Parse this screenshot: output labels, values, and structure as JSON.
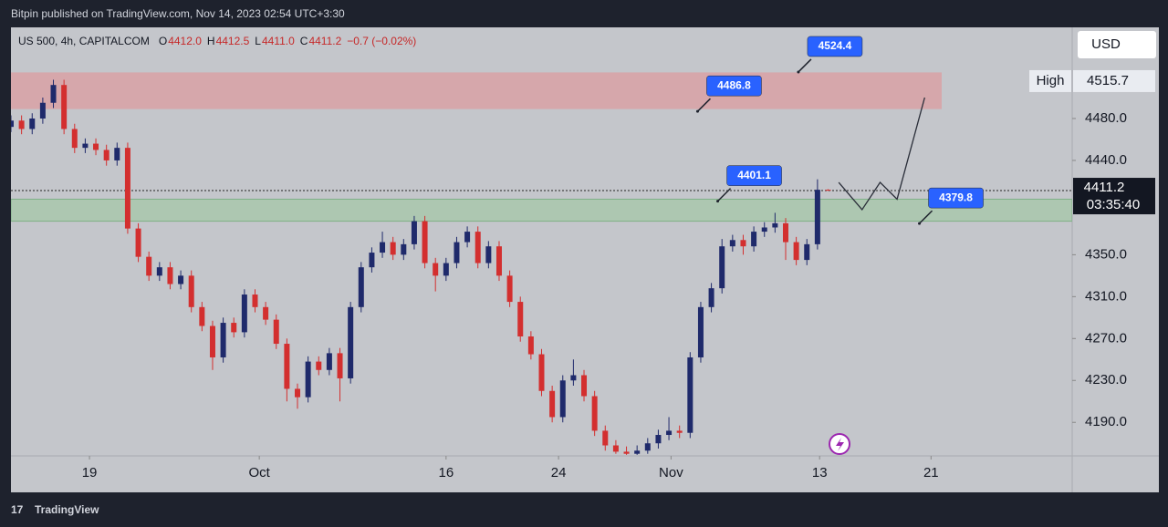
{
  "header": {
    "text": "Bitpin published on TradingView.com, Nov 14, 2023 02:54 UTC+3:30"
  },
  "footer": {
    "brand": "TradingView"
  },
  "chart_data": {
    "type": "candlestick",
    "symbol": "US 500, 4h, CAPITALCOM",
    "legend_values": [
      {
        "key": "O",
        "text": "4412.0"
      },
      {
        "key": "H",
        "text": "4412.5"
      },
      {
        "key": "L",
        "text": "4411.0"
      },
      {
        "key": "C",
        "text": "4411.2"
      }
    ],
    "change": "−0.7 (−0.02%)",
    "currency": "USD",
    "up_color": "#1f2a6b",
    "down_color": "#d32f2f",
    "xlim": [
      0,
      100
    ],
    "xticks": [
      {
        "value": 7.4,
        "label": "19"
      },
      {
        "value": 23.4,
        "label": "Oct"
      },
      {
        "value": 41,
        "label": "16"
      },
      {
        "value": 51.6,
        "label": "24"
      },
      {
        "value": 62.2,
        "label": "Nov"
      },
      {
        "value": 76.2,
        "label": "13"
      },
      {
        "value": 86.7,
        "label": "21"
      }
    ],
    "ylim": [
      4158,
      4567
    ],
    "yticks": [
      {
        "value": 4190,
        "label": "4190.0"
      },
      {
        "value": 4230,
        "label": "4230.0"
      },
      {
        "value": 4270,
        "label": "4270.0"
      },
      {
        "value": 4310,
        "label": "4310.0"
      },
      {
        "value": 4350,
        "label": "4350.0"
      },
      {
        "value": 4440,
        "label": "4440.0"
      },
      {
        "value": 4480,
        "label": "4480.0"
      }
    ],
    "open": [
      4472,
      4478,
      4470,
      4480,
      4495,
      4512,
      4470,
      4452,
      4456,
      4450,
      4440,
      4452,
      4375,
      4348,
      4330,
      4338,
      4322,
      4330,
      4300,
      4282,
      4252,
      4285,
      4276,
      4312,
      4300,
      4288,
      4265,
      4222,
      4214,
      4248,
      4240,
      4256,
      4232,
      4300,
      4338,
      4352,
      4362,
      4350,
      4360,
      4382,
      4342,
      4330,
      4342,
      4362,
      4372,
      4342,
      4358,
      4330,
      4305,
      4272,
      4255,
      4220,
      4195,
      4230,
      4235,
      4215,
      4182,
      4168,
      4162,
      4160,
      4163,
      4170,
      4178,
      4182,
      4180,
      4252,
      4300,
      4318,
      4358,
      4364,
      4358,
      4372,
      4376,
      4380,
      4362,
      4345,
      4360,
      4412.0
    ],
    "high": [
      4483,
      4483,
      4485,
      4500,
      4517,
      4517,
      4475,
      4461,
      4461,
      4455,
      4457,
      4457,
      4380,
      4353,
      4343,
      4343,
      4335,
      4335,
      4305,
      4287,
      4290,
      4290,
      4317,
      4317,
      4305,
      4293,
      4270,
      4227,
      4253,
      4253,
      4261,
      4261,
      4305,
      4343,
      4357,
      4372,
      4367,
      4365,
      4387,
      4387,
      4347,
      4347,
      4367,
      4377,
      4377,
      4363,
      4363,
      4335,
      4310,
      4277,
      4260,
      4225,
      4235,
      4250,
      4240,
      4220,
      4187,
      4173,
      4167,
      4168,
      4175,
      4183,
      4195,
      4187,
      4257,
      4305,
      4323,
      4365,
      4369,
      4369,
      4377,
      4381,
      4390,
      4385,
      4367,
      4365,
      4422,
      4412.5
    ],
    "low": [
      4467,
      4465,
      4465,
      4475,
      4490,
      4465,
      4447,
      4447,
      4445,
      4435,
      4435,
      4370,
      4343,
      4325,
      4325,
      4317,
      4317,
      4295,
      4277,
      4240,
      4247,
      4271,
      4271,
      4295,
      4283,
      4260,
      4210,
      4203,
      4209,
      4235,
      4235,
      4210,
      4227,
      4295,
      4333,
      4347,
      4345,
      4345,
      4355,
      4337,
      4315,
      4325,
      4337,
      4357,
      4337,
      4337,
      4325,
      4300,
      4267,
      4250,
      4215,
      4190,
      4190,
      4225,
      4210,
      4177,
      4163,
      4160,
      4159,
      4159,
      4160,
      4165,
      4173,
      4175,
      4175,
      4247,
      4295,
      4313,
      4353,
      4350,
      4353,
      4367,
      4371,
      4345,
      4340,
      4340,
      4355,
      4411.0
    ],
    "close": [
      4478,
      4470,
      4480,
      4495,
      4512,
      4470,
      4452,
      4456,
      4450,
      4440,
      4452,
      4375,
      4348,
      4330,
      4338,
      4322,
      4330,
      4300,
      4282,
      4252,
      4285,
      4276,
      4312,
      4300,
      4288,
      4265,
      4222,
      4214,
      4248,
      4240,
      4256,
      4232,
      4300,
      4338,
      4352,
      4362,
      4350,
      4360,
      4382,
      4342,
      4330,
      4342,
      4362,
      4372,
      4342,
      4358,
      4330,
      4305,
      4272,
      4255,
      4220,
      4195,
      4230,
      4235,
      4215,
      4182,
      4168,
      4162,
      4160,
      4163,
      4170,
      4178,
      4182,
      4180,
      4252,
      4300,
      4318,
      4358,
      4364,
      4358,
      4372,
      4376,
      4380,
      4362,
      4345,
      4360,
      4412.0,
      4411.2
    ],
    "zones": [
      {
        "range": [
          4489,
          4524
        ],
        "color": "#d9a1a6"
      },
      {
        "range": [
          4382,
          4403
        ],
        "color": "#a9c7ad"
      }
    ],
    "projection": {
      "x": [
        78,
        80.2,
        81.9,
        83.5,
        86.1
      ],
      "y": [
        4419,
        4393,
        4419,
        4403,
        4500
      ]
    },
    "annotations": [
      {
        "x": 74.2,
        "value": 4524.4
      },
      {
        "x": 64.7,
        "value": 4486.8
      },
      {
        "x": 66.6,
        "value": 4401.1
      },
      {
        "x": 85.6,
        "value": 4379.8
      }
    ],
    "high_label": {
      "key": "High",
      "value": 4515.7
    },
    "last_price": {
      "value": 4411.2,
      "countdown": "03:35:40"
    }
  }
}
